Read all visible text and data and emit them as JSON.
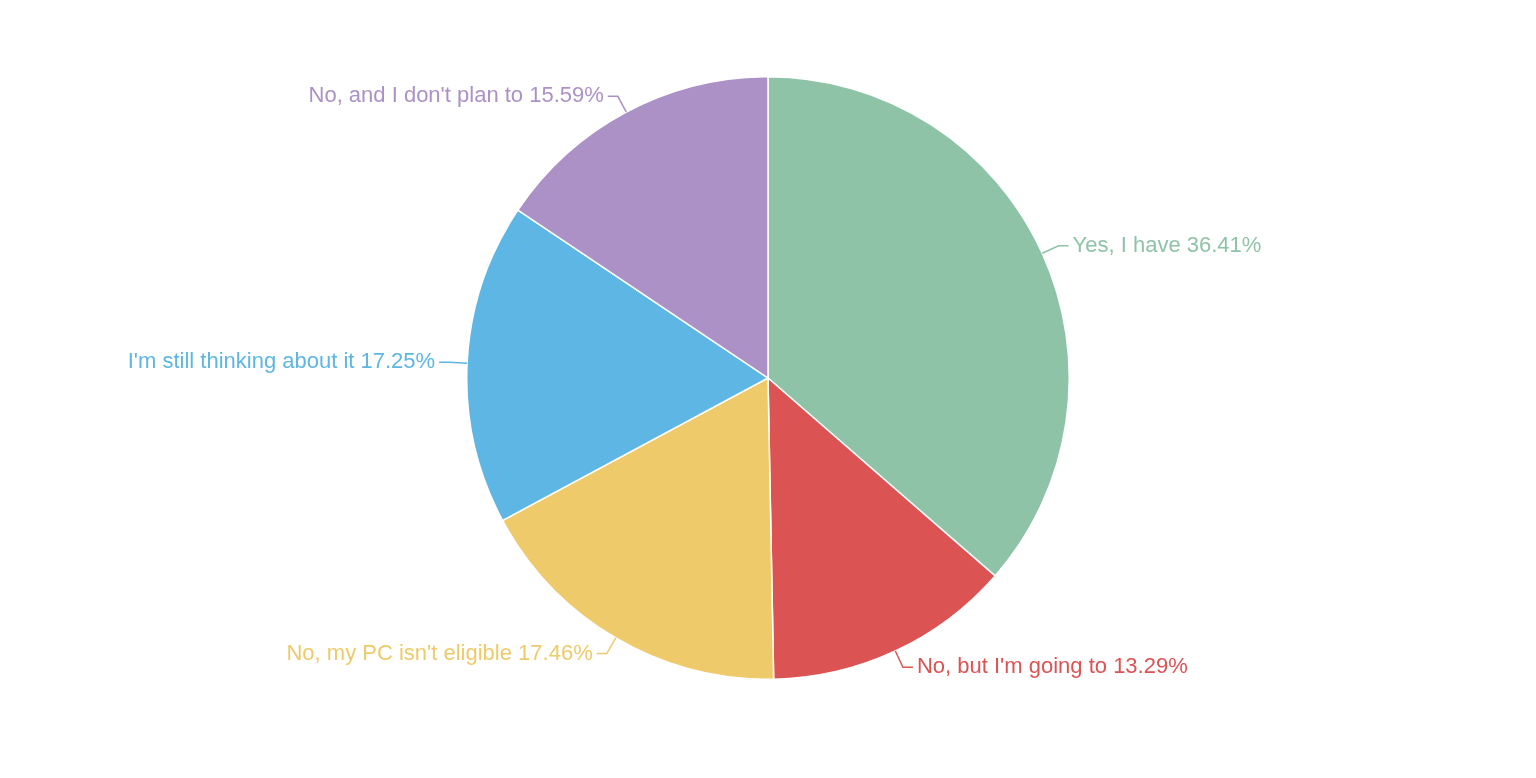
{
  "chart_data": {
    "type": "pie",
    "categories": [
      "Yes, I have",
      "No, but I'm going to",
      "No, my PC isn't eligible",
      "I'm still thinking about it",
      "No, and I don't plan to"
    ],
    "values": [
      36.41,
      13.29,
      17.46,
      17.25,
      15.59
    ],
    "colors": [
      "#8fc3a7",
      "#dc5354",
      "#eeca6a",
      "#5db6e3",
      "#ac91c6"
    ],
    "value_labels": [
      "36.41%",
      "13.29%",
      "17.46%",
      "17.25%",
      "15.59%"
    ],
    "legend": false
  }
}
